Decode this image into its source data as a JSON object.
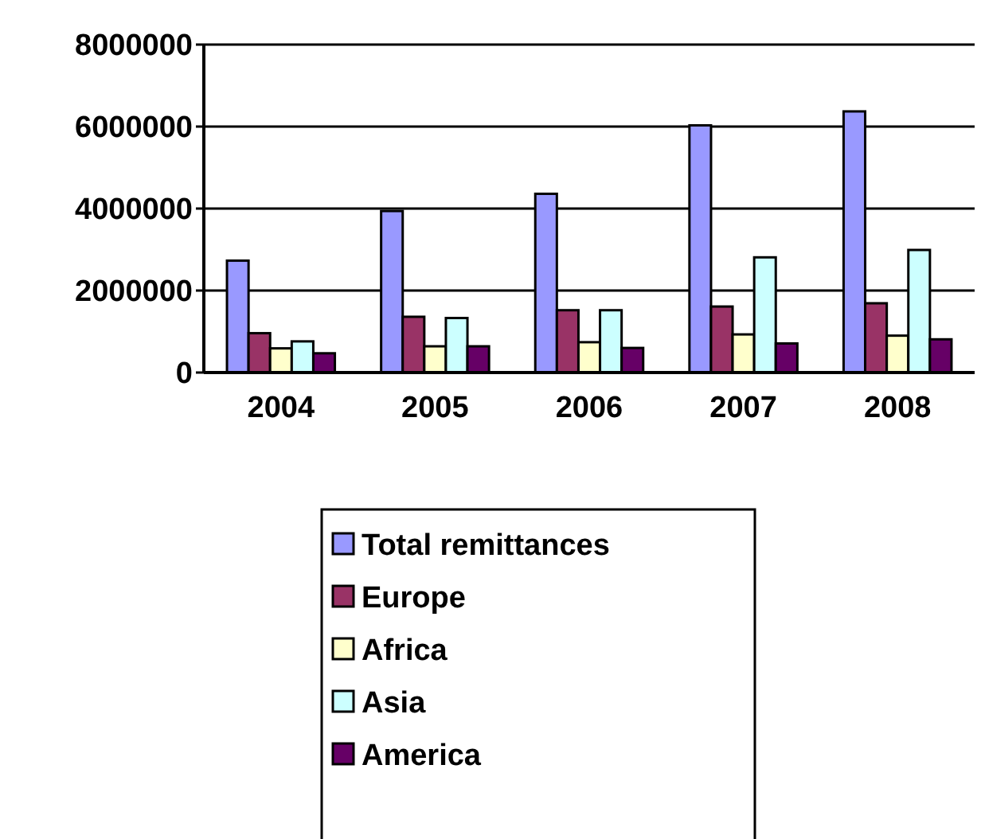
{
  "chart_data": {
    "type": "bar",
    "categories": [
      "2004",
      "2005",
      "2006",
      "2007",
      "2008"
    ],
    "series": [
      {
        "name": "Total remittances",
        "color": "#9999ff",
        "values": [
          2730000,
          3940000,
          4360000,
          6030000,
          6370000
        ]
      },
      {
        "name": "Europe",
        "color": "#993366",
        "values": [
          960000,
          1360000,
          1520000,
          1610000,
          1690000
        ]
      },
      {
        "name": "Africa",
        "color": "#ffffcc",
        "values": [
          590000,
          640000,
          740000,
          930000,
          900000
        ]
      },
      {
        "name": "Asia",
        "color": "#ccffff",
        "values": [
          760000,
          1330000,
          1520000,
          2810000,
          2990000
        ]
      },
      {
        "name": "America",
        "color": "#660066",
        "values": [
          470000,
          640000,
          600000,
          710000,
          810000
        ]
      }
    ],
    "ylim": [
      0,
      8000000
    ],
    "yticks": [
      0,
      2000000,
      4000000,
      6000000,
      8000000
    ],
    "grid": "y",
    "legend": "bottom"
  }
}
